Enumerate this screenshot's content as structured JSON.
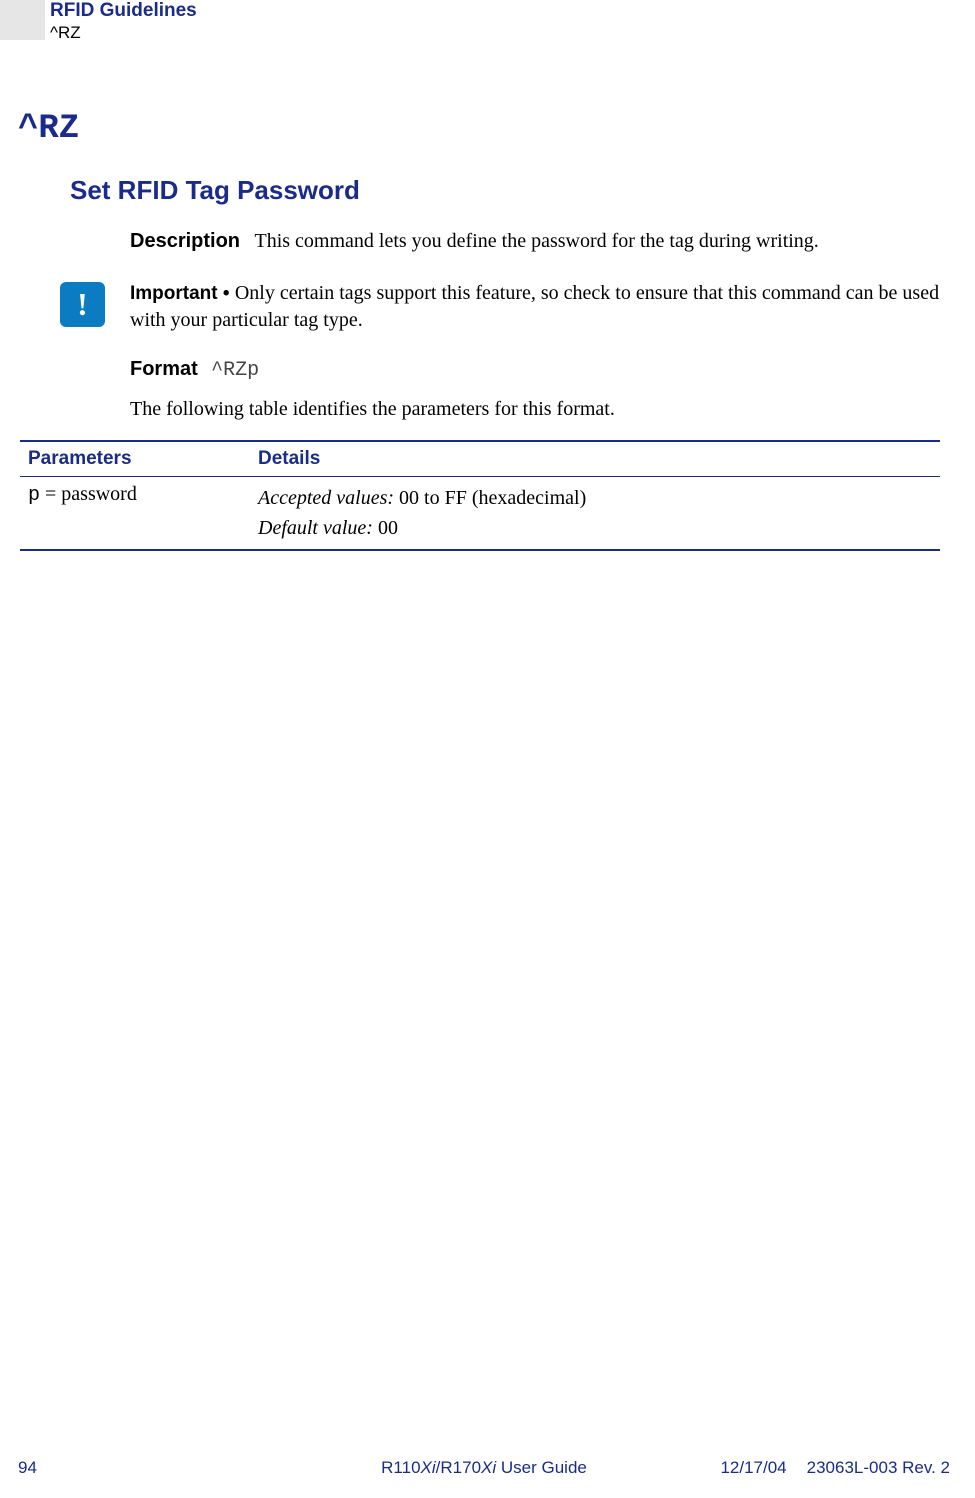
{
  "header": {
    "title": "RFID Guidelines",
    "subtitle": "^RZ"
  },
  "command": {
    "heading": "^RZ",
    "section_title": "Set RFID Tag Password"
  },
  "description": {
    "label": "Description",
    "text": "This command lets you define the password for the tag during writing."
  },
  "important": {
    "label": "Important • ",
    "text": "Only certain tags support this feature, so check to ensure that this command can be used with your particular tag type.",
    "icon_glyph": "!"
  },
  "format": {
    "label": "Format",
    "code": "^RZp"
  },
  "table_intro": "The following table identifies the parameters for this format.",
  "table": {
    "headers": {
      "param": "Parameters",
      "details": "Details"
    },
    "row": {
      "param_code": "p",
      "param_eq": " = ",
      "param_name": "password",
      "accepted_label": "Accepted values:",
      "accepted_value": " 00 to FF (hexadecimal)",
      "default_label": "Default value:",
      "default_value": " 00"
    }
  },
  "footer": {
    "page": "94",
    "guide_prefix": "R110",
    "guide_italic1": "Xi",
    "guide_mid": "/R170",
    "guide_italic2": "Xi",
    "guide_suffix": " User Guide",
    "date": "12/17/04",
    "rev": "23063L-003 Rev. 2"
  },
  "colors": {
    "brand_blue": "#1a2b8e",
    "icon_blue": "#0b7cc2",
    "gray_box": "#e6e6e6"
  }
}
